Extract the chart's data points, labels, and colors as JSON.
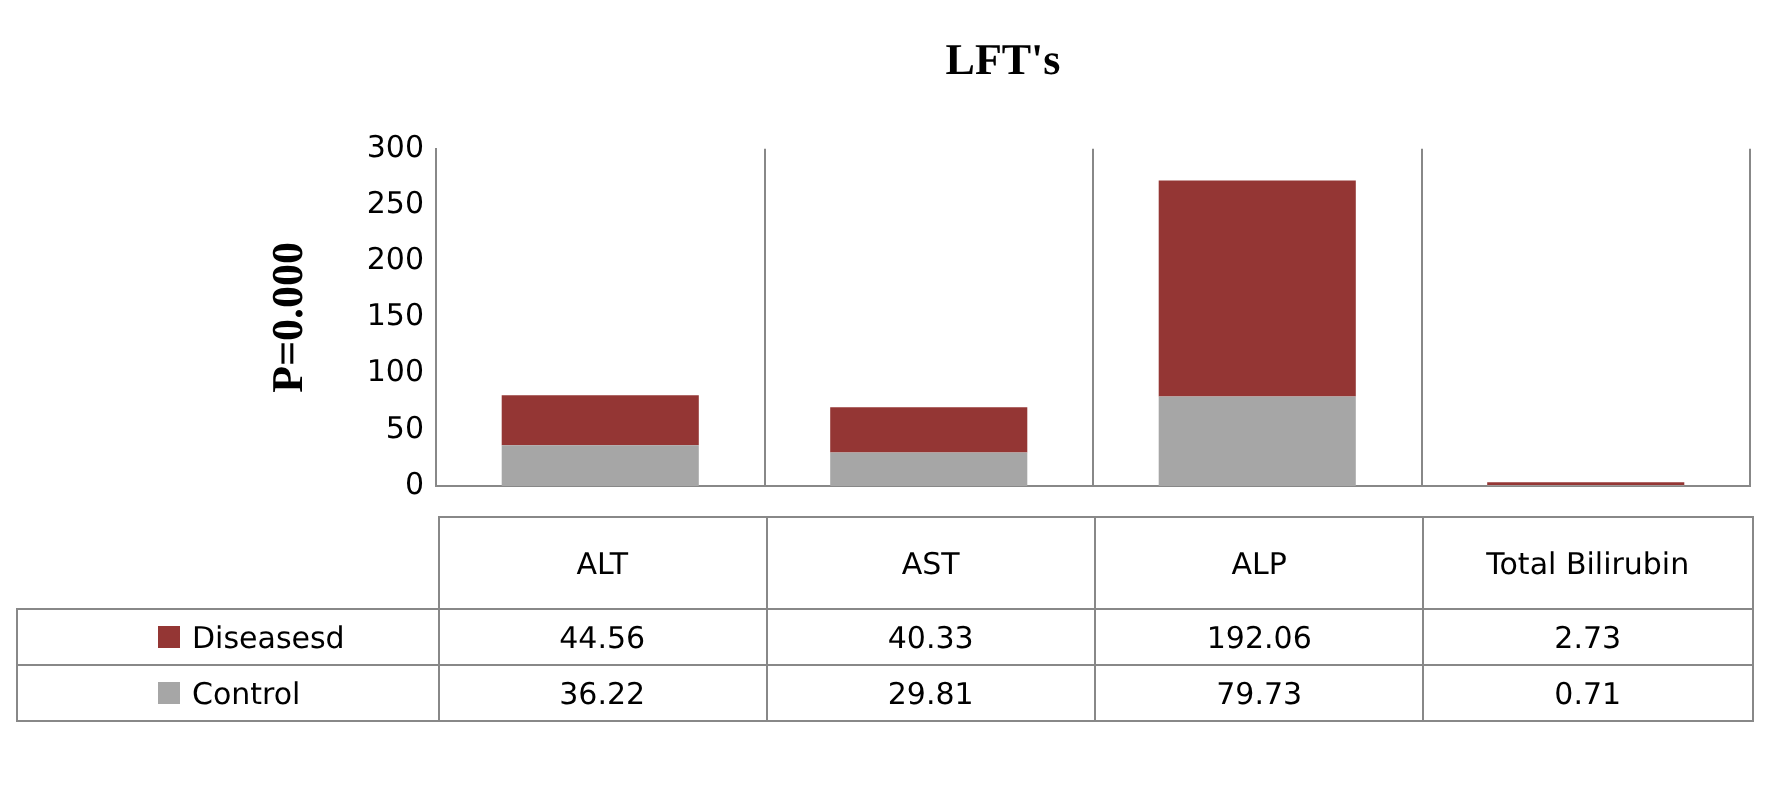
{
  "chart_data": {
    "type": "bar",
    "title": "LFT's",
    "ylabel": "P=0.000",
    "categories": [
      "ALT",
      "AST",
      "ALP",
      "Total Bilirubin"
    ],
    "stacked": true,
    "ylim": [
      0,
      300
    ],
    "yticks": [
      0,
      50,
      100,
      150,
      200,
      250,
      300
    ],
    "grid": false,
    "legend": "bottom",
    "data_labels": true,
    "series": [
      {
        "name": "Control",
        "color": "#a6a6a6",
        "values": [
          36.22,
          29.81,
          79.73,
          0.71
        ]
      },
      {
        "name": "Diseasesd",
        "color": "#943634",
        "values": [
          44.56,
          40.33,
          192.06,
          2.73
        ]
      }
    ]
  }
}
